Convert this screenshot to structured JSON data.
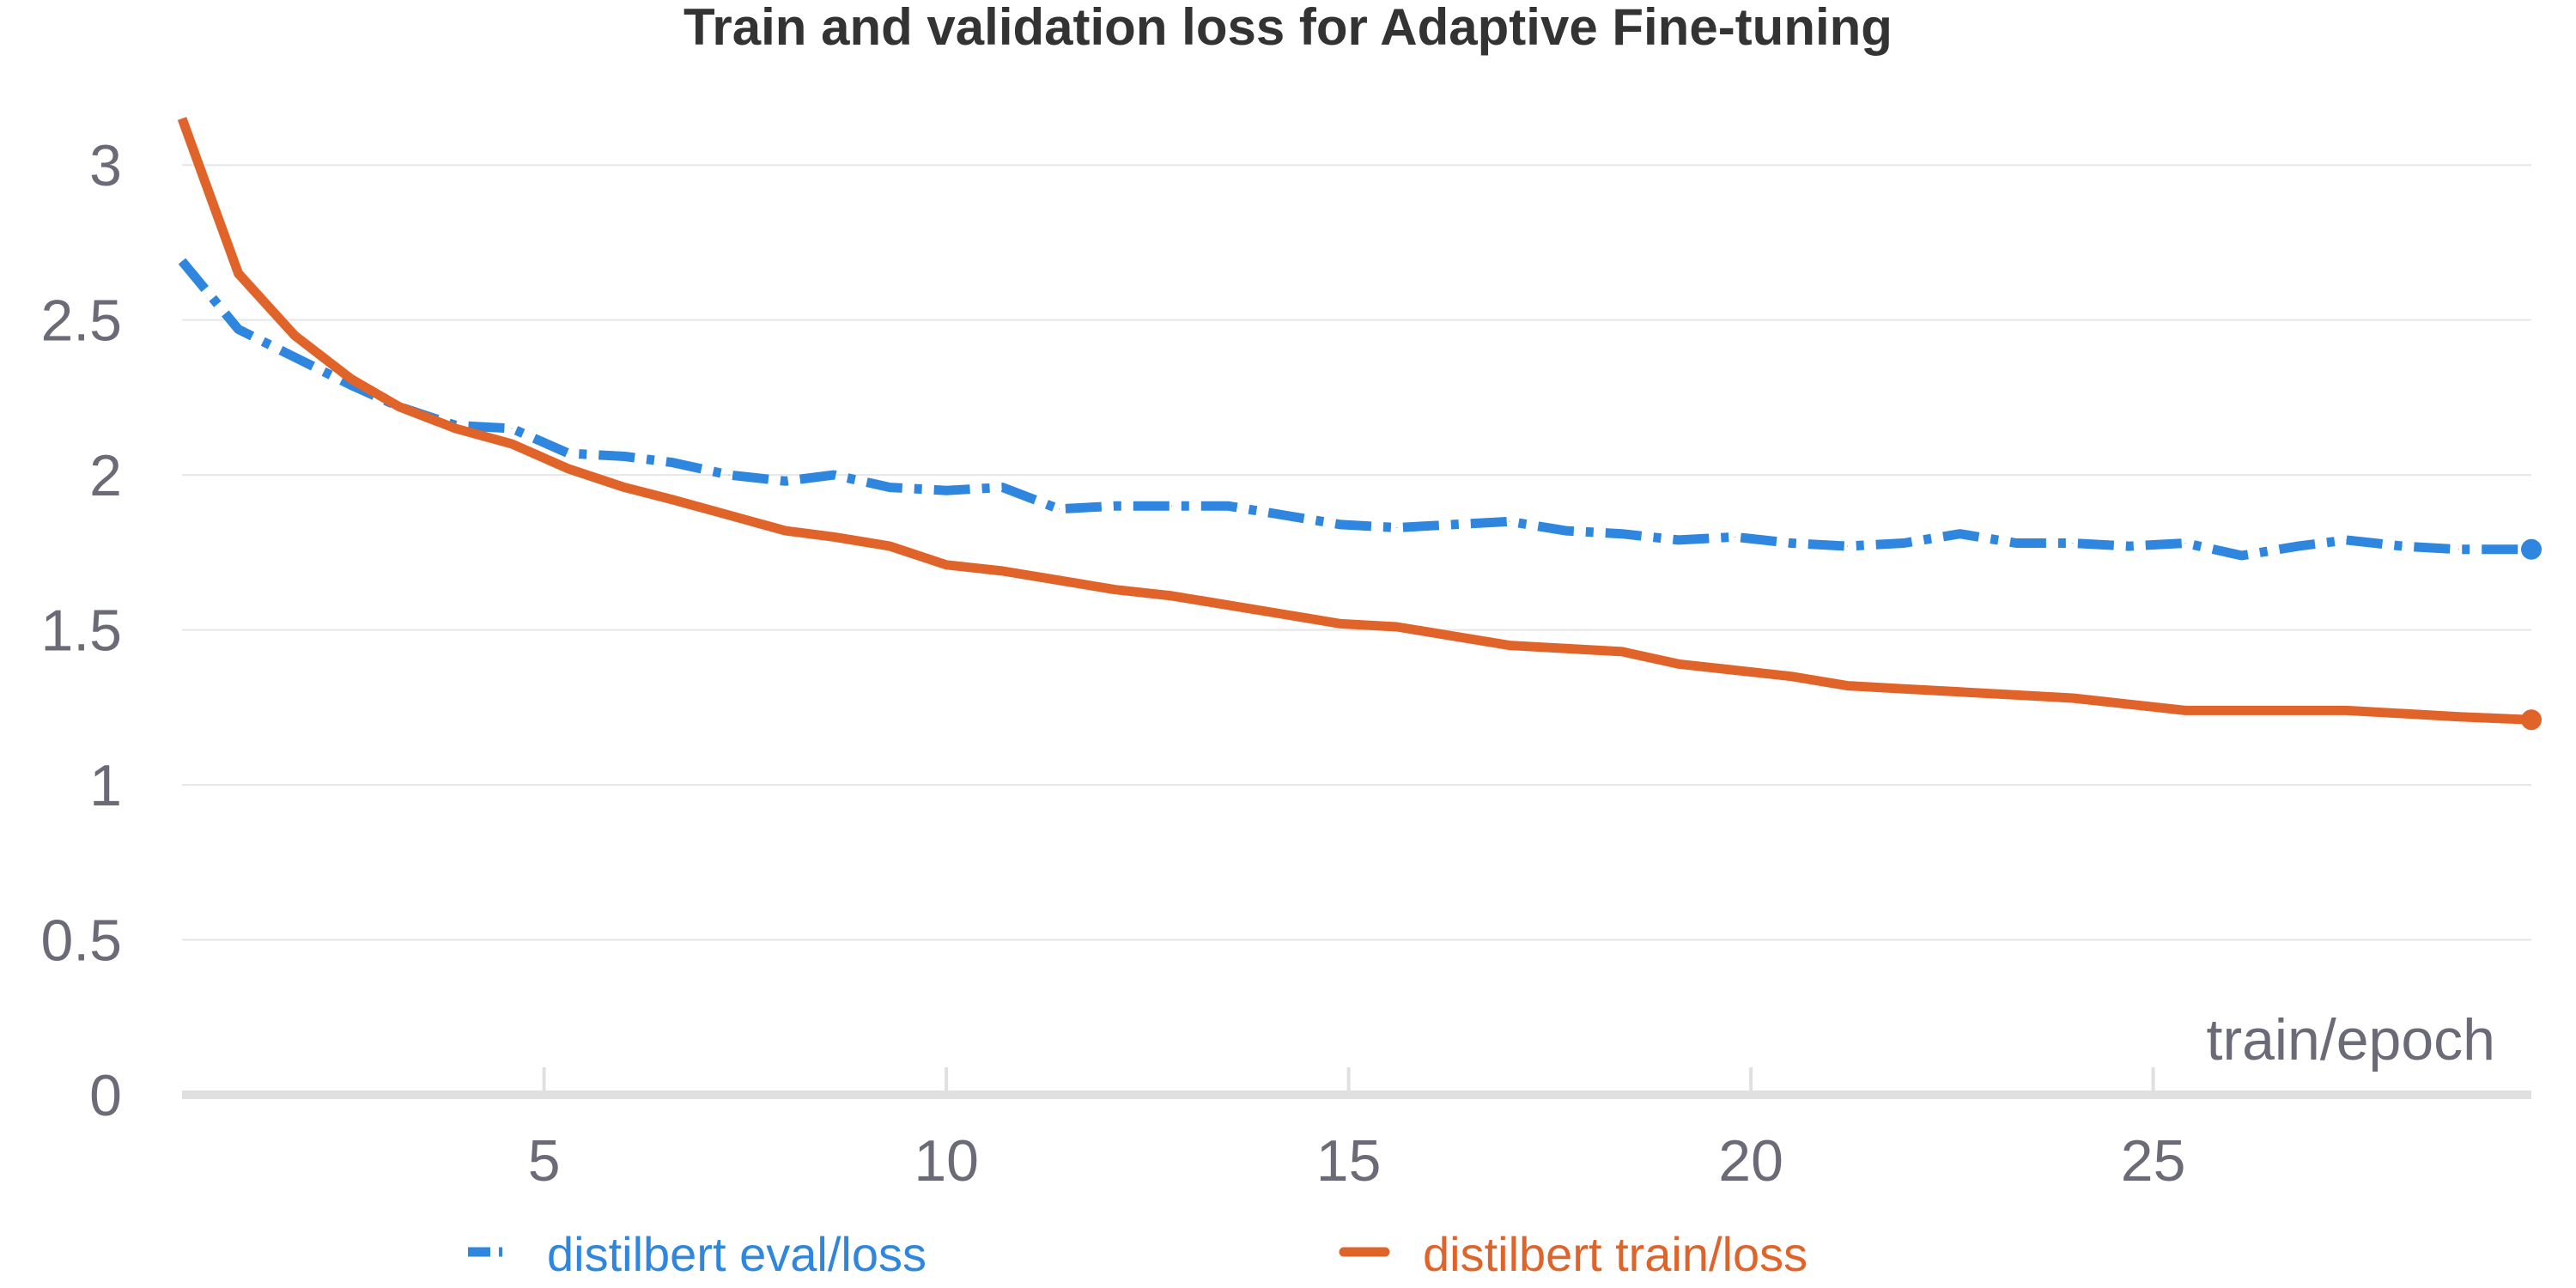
{
  "chart_data": {
    "type": "line",
    "title": "Train and validation loss for Adaptive Fine-tuning",
    "xlabel": "train/epoch",
    "ylabel": "",
    "xlim": [
      0.5,
      29.7
    ],
    "ylim": [
      0,
      3.2
    ],
    "x_ticks": [
      5,
      10,
      15,
      20,
      25
    ],
    "y_ticks": [
      0,
      0.5,
      1,
      1.5,
      2,
      2.5,
      3
    ],
    "y_tick_labels": [
      "0",
      "0.5",
      "1",
      "1.5",
      "2",
      "2.5",
      "3"
    ],
    "x_tick_labels": [
      "5",
      "10",
      "15",
      "20",
      "25"
    ],
    "grid": true,
    "legend_position": "bottom",
    "series": [
      {
        "name": "distilbert eval/loss",
        "color": "#2e86de",
        "style": "dashdot",
        "x": [
          0.5,
          1.2,
          1.9,
          2.6,
          3.2,
          3.9,
          4.6,
          5.3,
          6.0,
          6.6,
          7.3,
          8.0,
          8.6,
          9.3,
          10.0,
          10.7,
          11.4,
          12.1,
          12.8,
          13.5,
          14.2,
          14.9,
          15.6,
          16.3,
          17.0,
          17.7,
          18.4,
          19.1,
          19.8,
          20.5,
          21.2,
          21.9,
          22.6,
          23.3,
          24.0,
          24.7,
          25.4,
          26.1,
          26.8,
          27.4,
          28.1,
          28.8,
          29.7
        ],
        "values": [
          2.69,
          2.47,
          2.38,
          2.29,
          2.22,
          2.16,
          2.15,
          2.07,
          2.06,
          2.04,
          2.0,
          1.98,
          2.0,
          1.96,
          1.95,
          1.96,
          1.89,
          1.9,
          1.9,
          1.9,
          1.87,
          1.84,
          1.83,
          1.84,
          1.85,
          1.82,
          1.81,
          1.79,
          1.8,
          1.78,
          1.77,
          1.78,
          1.81,
          1.78,
          1.78,
          1.77,
          1.78,
          1.74,
          1.77,
          1.79,
          1.77,
          1.76,
          1.76
        ]
      },
      {
        "name": "distilbert train/loss",
        "color": "#e06429",
        "style": "solid",
        "x": [
          0.5,
          1.2,
          1.9,
          2.6,
          3.2,
          3.9,
          4.6,
          5.3,
          6.0,
          6.6,
          7.3,
          8.0,
          8.6,
          9.3,
          10.0,
          10.7,
          11.4,
          12.1,
          12.8,
          13.5,
          14.2,
          14.9,
          15.6,
          16.3,
          17.0,
          17.7,
          18.4,
          19.1,
          19.8,
          20.5,
          21.2,
          21.9,
          22.6,
          23.3,
          24.0,
          24.7,
          25.4,
          26.1,
          26.8,
          27.4,
          28.1,
          28.8,
          29.7
        ],
        "values": [
          3.15,
          2.65,
          2.45,
          2.31,
          2.22,
          2.15,
          2.1,
          2.02,
          1.96,
          1.92,
          1.87,
          1.82,
          1.8,
          1.77,
          1.71,
          1.69,
          1.66,
          1.63,
          1.61,
          1.58,
          1.55,
          1.52,
          1.51,
          1.48,
          1.45,
          1.44,
          1.43,
          1.39,
          1.37,
          1.35,
          1.32,
          1.31,
          1.3,
          1.29,
          1.28,
          1.26,
          1.24,
          1.24,
          1.24,
          1.24,
          1.23,
          1.22,
          1.21
        ]
      }
    ]
  }
}
